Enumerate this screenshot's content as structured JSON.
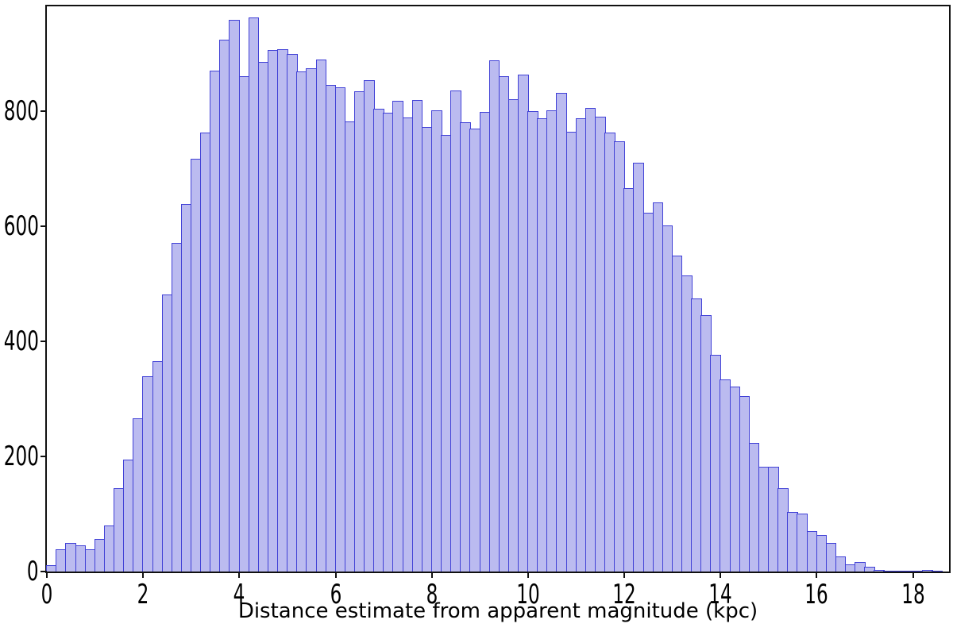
{
  "chart_data": {
    "type": "histogram",
    "title": "",
    "xlabel": "Distance estimate from apparent magnitude (kpc)",
    "ylabel": "",
    "bin_start": 0,
    "bin_width": 0.2,
    "counts": [
      11,
      38,
      49,
      46,
      39,
      56,
      80,
      145,
      195,
      266,
      339,
      366,
      481,
      571,
      639,
      717,
      763,
      870,
      924,
      958,
      861,
      963,
      886,
      906,
      908,
      899,
      869,
      875,
      889,
      846,
      842,
      782,
      835,
      854,
      804,
      797,
      818,
      789,
      819,
      772,
      802,
      759,
      836,
      780,
      769,
      798,
      888,
      861,
      821,
      864,
      800,
      788,
      802,
      831,
      764,
      787,
      806,
      790,
      763,
      747,
      666,
      711,
      623,
      641,
      601,
      549,
      514,
      475,
      446,
      377,
      334,
      321,
      305,
      223,
      182,
      182,
      145,
      104,
      101,
      70,
      63,
      50,
      26,
      12,
      17,
      8,
      3,
      2,
      2,
      2,
      1,
      3,
      1
    ],
    "x_ticks": [
      0,
      2,
      4,
      6,
      8,
      10,
      12,
      14,
      16,
      18
    ],
    "y_ticks": [
      0,
      200,
      400,
      600,
      800
    ],
    "xlim": [
      0,
      18.75
    ],
    "ylim": [
      0,
      982
    ],
    "grid": false,
    "legend_position": "none",
    "bar_fill_color": "#bbbbf0",
    "bar_edge_color": "#4141d6",
    "axis_color": "#111111"
  }
}
